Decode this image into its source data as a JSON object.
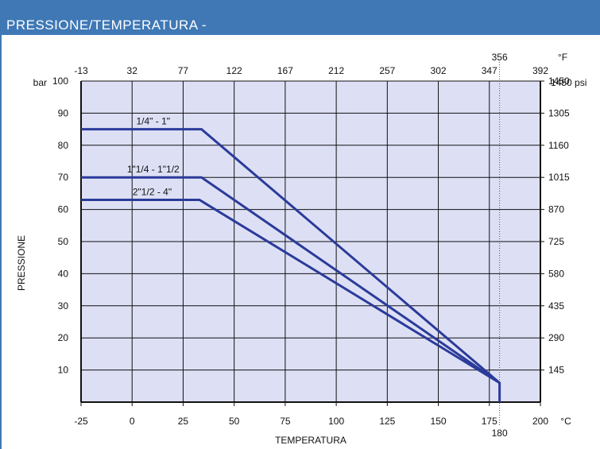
{
  "header": {
    "title": "PRESSIONE/TEMPERATURA  -"
  },
  "colors": {
    "header_bg": "#3f78b5",
    "plot_bg": "#dde0f5",
    "series": "#2b3b9a",
    "grid": "#111111"
  },
  "chart_data": {
    "type": "line",
    "title": "",
    "xlabel": "TEMPERATURA",
    "ylabel": "PRESSIONE",
    "x_unit": "°C",
    "y_unit": "bar",
    "x_top_unit": "°F",
    "y_right_unit": "psi",
    "xlim": [
      -25,
      200
    ],
    "ylim": [
      0,
      100
    ],
    "x_ticks": [
      -25,
      0,
      25,
      50,
      75,
      100,
      125,
      150,
      175,
      200
    ],
    "y_ticks": [
      10,
      20,
      30,
      40,
      50,
      60,
      70,
      80,
      90,
      100
    ],
    "x_top_ticks": [
      "-13",
      "32",
      "77",
      "122",
      "167",
      "212",
      "257",
      "302",
      "347",
      "392"
    ],
    "y_right_ticks": [
      "145",
      "290",
      "435",
      "580",
      "725",
      "870",
      "1015",
      "1160",
      "1305",
      "1450"
    ],
    "marker": {
      "x": 180,
      "label_bottom": "180",
      "label_top": "356"
    },
    "grid": true,
    "series": [
      {
        "name": "1/4\" - 1\"",
        "x": [
          -25,
          34,
          180,
          180
        ],
        "y": [
          85,
          85,
          6,
          0
        ]
      },
      {
        "name": "1\"1/4 - 1\"1/2",
        "x": [
          -25,
          34,
          180
        ],
        "y": [
          70,
          70,
          6
        ]
      },
      {
        "name": "2\"1/2 - 4\"",
        "x": [
          -25,
          33,
          180
        ],
        "y": [
          63,
          63,
          6
        ]
      }
    ]
  }
}
